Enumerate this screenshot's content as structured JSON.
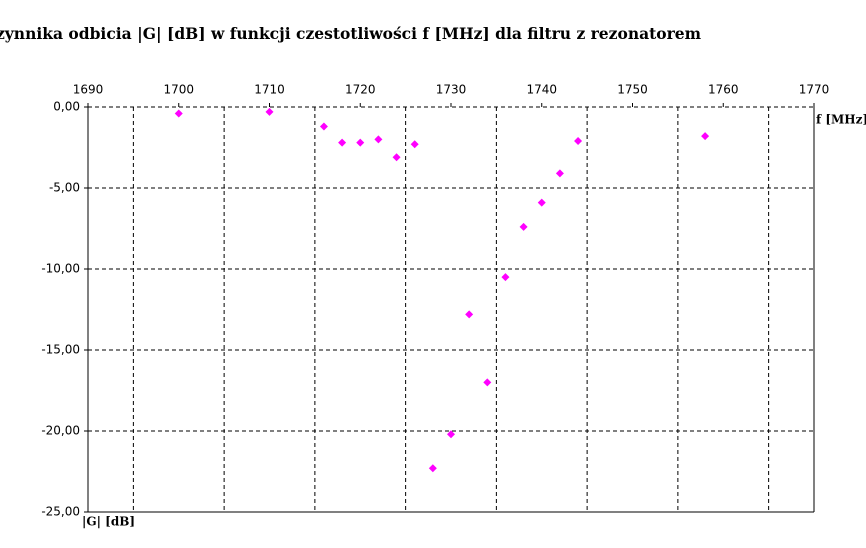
{
  "chart_data": {
    "type": "scatter",
    "title": "zynnika odbicia |G| [dB] w funkcji czestotliwości f [MHz] dla filtru z rezonatorem",
    "x_label": "f [MHz]",
    "y_label": "|G| [dB]",
    "x": [
      1700,
      1710,
      1716,
      1718,
      1720,
      1722,
      1724,
      1726,
      1728,
      1730,
      1732,
      1734,
      1736,
      1738,
      1740,
      1742,
      1744,
      1758
    ],
    "series": [
      {
        "color": "#ff00ff",
        "values": [
          -0.4,
          -0.3,
          -1.2,
          -2.2,
          -2.2,
          -2.0,
          -3.1,
          -2.3,
          -22.3,
          -20.2,
          -12.8,
          -17.0,
          -10.5,
          -7.4,
          -5.9,
          -4.1,
          -2.1,
          -1.8
        ]
      }
    ],
    "xlim": [
      1690,
      1770
    ],
    "xticks": [
      1690,
      1700,
      1710,
      1720,
      1730,
      1740,
      1750,
      1760,
      1770
    ],
    "ylim": [
      -25,
      0
    ],
    "yticks": [
      {
        "value": 0,
        "label": "0,00"
      },
      {
        "value": -5,
        "label": "-5,00"
      },
      {
        "value": -10,
        "label": "-10,00"
      },
      {
        "value": -15,
        "label": "-15,00"
      },
      {
        "value": -20,
        "label": "-20,00"
      },
      {
        "value": -25,
        "label": "-25,00"
      }
    ],
    "grid": true
  }
}
